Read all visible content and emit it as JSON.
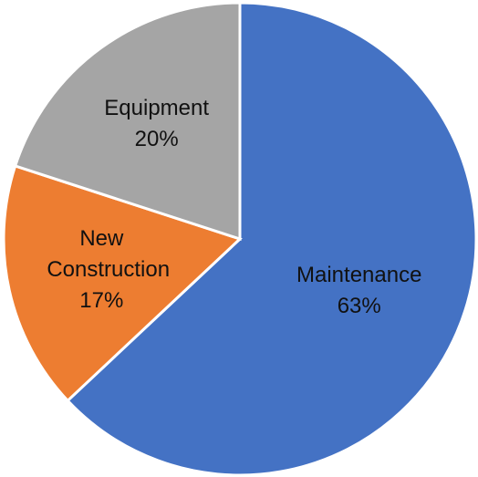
{
  "chart_data": {
    "type": "pie",
    "categories": [
      "Maintenance",
      "New Construction",
      "Equipment"
    ],
    "values": [
      63,
      17,
      20
    ],
    "value_labels": [
      "63%",
      "17%",
      "20%"
    ],
    "colors": [
      "#4472c4",
      "#ed7d31",
      "#a5a5a5"
    ]
  }
}
